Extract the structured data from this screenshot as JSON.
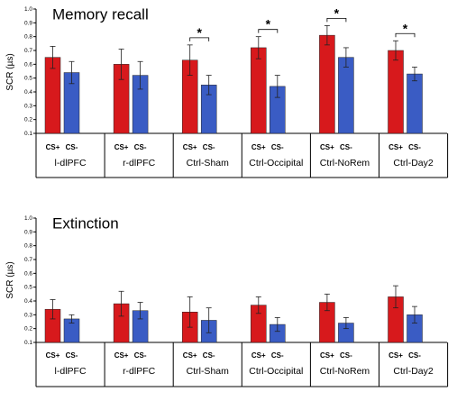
{
  "colors": {
    "cs_plus": "#d7191c",
    "cs_minus": "#3a5cc4",
    "axis": "#000000"
  },
  "chart_data": [
    {
      "type": "bar",
      "title": "Memory recall",
      "ylabel": "SCR (µs)",
      "ylim": [
        0.1,
        1.0
      ],
      "yticks": [
        "0.1",
        "0.2",
        "0.3",
        "0.4",
        "0.5",
        "0.6",
        "0.7",
        "0.8",
        "0.9",
        "1.0"
      ],
      "categories": [
        "l-dlPFC",
        "r-dlPFC",
        "Ctrl-Sham",
        "Ctrl-Occipital",
        "Ctrl-NoRem",
        "Ctrl-Day2"
      ],
      "bar_labels": [
        "CS+",
        "CS-"
      ],
      "series": [
        {
          "name": "CS+",
          "values": [
            0.65,
            0.6,
            0.63,
            0.72,
            0.81,
            0.7
          ],
          "errors": [
            0.08,
            0.11,
            0.11,
            0.08,
            0.07,
            0.07
          ]
        },
        {
          "name": "CS-",
          "values": [
            0.54,
            0.52,
            0.45,
            0.44,
            0.65,
            0.53
          ],
          "errors": [
            0.08,
            0.1,
            0.07,
            0.08,
            0.07,
            0.05
          ]
        }
      ],
      "significance": [
        false,
        false,
        true,
        true,
        true,
        true
      ],
      "significance_symbol": "*"
    },
    {
      "type": "bar",
      "title": "Extinction",
      "ylabel": "SCR (µs)",
      "ylim": [
        0.1,
        1.0
      ],
      "yticks": [
        "0.1",
        "0.2",
        "0.3",
        "0.4",
        "0.5",
        "0.6",
        "0.7",
        "0.8",
        "0.9",
        "1.0"
      ],
      "categories": [
        "l-dlPFC",
        "r-dlPFC",
        "Ctrl-Sham",
        "Ctrl-Occipital",
        "Ctrl-NoRem",
        "Ctrl-Day2"
      ],
      "bar_labels": [
        "CS+",
        "CS-"
      ],
      "series": [
        {
          "name": "CS+",
          "values": [
            0.34,
            0.38,
            0.32,
            0.37,
            0.39,
            0.43
          ],
          "errors": [
            0.07,
            0.09,
            0.11,
            0.06,
            0.06,
            0.08
          ]
        },
        {
          "name": "CS-",
          "values": [
            0.27,
            0.33,
            0.26,
            0.23,
            0.24,
            0.3
          ],
          "errors": [
            0.03,
            0.06,
            0.09,
            0.05,
            0.04,
            0.06
          ]
        }
      ],
      "significance": [
        false,
        false,
        false,
        false,
        false,
        false
      ],
      "significance_symbol": "*"
    }
  ]
}
